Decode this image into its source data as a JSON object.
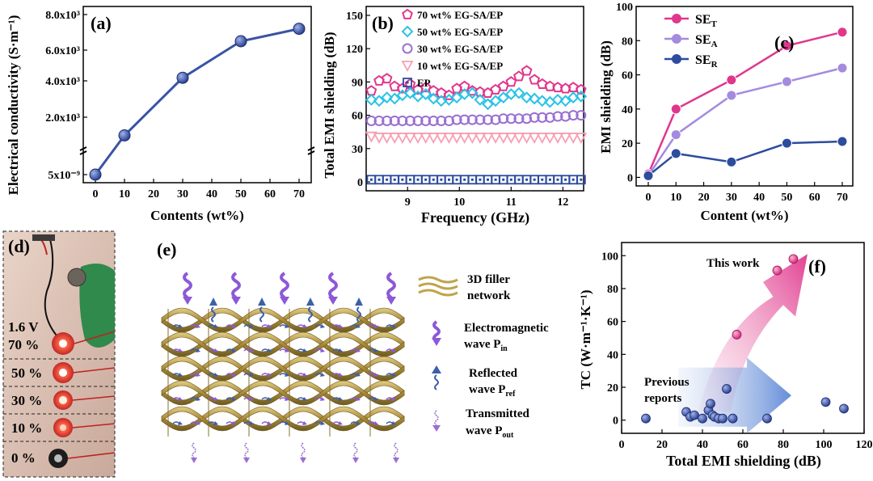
{
  "chart_data": [
    {
      "id": "a",
      "type": "line",
      "panel_label": "(a)",
      "xlabel": "Contents (wt%)",
      "ylabel": "Electrical conductivity (S·m⁻¹)",
      "x": [
        0,
        10,
        30,
        50,
        70
      ],
      "y": [
        5e-09,
        1000,
        4200,
        6500,
        7200
      ],
      "xticks": [
        "0",
        "10",
        "20",
        "30",
        "40",
        "50",
        "60",
        "70"
      ],
      "yticks": [
        "5x10⁻⁹",
        "2.0x10³",
        "4.0x10³",
        "6.0x10³",
        "8.0x10³"
      ],
      "color": "#3a53a4"
    },
    {
      "id": "b",
      "type": "scatter",
      "panel_label": "(b)",
      "xlabel": "Frequency (GHz)",
      "ylabel": "Total EMI shielding (dB)",
      "xlim": [
        8.2,
        12.4
      ],
      "ylim": [
        -8,
        158
      ],
      "xticks": [
        "9",
        "10",
        "11",
        "12"
      ],
      "yticks": [
        "0",
        "30",
        "60",
        "90",
        "120",
        "150"
      ],
      "series": [
        {
          "name": "70 wt% EG-SA/EP",
          "marker": "pentagon",
          "color": "#e0378d",
          "x": [
            8.3,
            8.45,
            8.6,
            8.75,
            8.9,
            9.05,
            9.2,
            9.35,
            9.5,
            9.65,
            9.8,
            9.95,
            10.1,
            10.25,
            10.4,
            10.55,
            10.7,
            10.85,
            11.0,
            11.15,
            11.3,
            11.45,
            11.6,
            11.75,
            11.9,
            12.05,
            12.2,
            12.35
          ],
          "values": [
            82,
            91,
            93,
            86,
            84,
            88,
            83,
            85,
            82,
            80,
            78,
            84,
            86,
            82,
            81,
            80,
            83,
            86,
            90,
            95,
            100,
            92,
            88,
            86,
            85,
            84,
            85,
            83
          ]
        },
        {
          "name": "50 wt% EG-SA/EP",
          "marker": "diamond",
          "color": "#29c3e6",
          "x": [
            8.3,
            8.45,
            8.6,
            8.75,
            8.9,
            9.05,
            9.2,
            9.35,
            9.5,
            9.65,
            9.8,
            9.95,
            10.1,
            10.25,
            10.4,
            10.55,
            10.7,
            10.85,
            11.0,
            11.15,
            11.3,
            11.45,
            11.6,
            11.75,
            11.9,
            12.05,
            12.2,
            12.35
          ],
          "values": [
            74,
            73,
            76,
            75,
            78,
            80,
            77,
            79,
            75,
            73,
            74,
            76,
            79,
            80,
            74,
            70,
            73,
            76,
            79,
            80,
            76,
            75,
            73,
            72,
            74,
            73,
            76,
            77
          ]
        },
        {
          "name": "30 wt% EG-SA/EP",
          "marker": "circle",
          "color": "#9b6fd1",
          "x": [
            8.3,
            8.45,
            8.6,
            8.75,
            8.9,
            9.05,
            9.2,
            9.35,
            9.5,
            9.65,
            9.8,
            9.95,
            10.1,
            10.25,
            10.4,
            10.55,
            10.7,
            10.85,
            11.0,
            11.15,
            11.3,
            11.45,
            11.6,
            11.75,
            11.9,
            12.05,
            12.2,
            12.35
          ],
          "values": [
            55,
            55,
            55,
            55,
            55,
            55,
            55,
            55,
            55,
            55,
            55,
            56,
            56,
            56,
            56,
            56,
            56,
            57,
            57,
            57,
            57,
            58,
            58,
            58,
            59,
            59,
            60,
            60
          ]
        },
        {
          "name": "10 wt% EG-SA/EP",
          "marker": "triangle",
          "color": "#f7a0b4",
          "x": [
            8.3,
            8.45,
            8.6,
            8.75,
            8.9,
            9.05,
            9.2,
            9.35,
            9.5,
            9.65,
            9.8,
            9.95,
            10.1,
            10.25,
            10.4,
            10.55,
            10.7,
            10.85,
            11.0,
            11.15,
            11.3,
            11.45,
            11.6,
            11.75,
            11.9,
            12.05,
            12.2,
            12.35
          ],
          "values": [
            41,
            40,
            40,
            40,
            40,
            40,
            40,
            40,
            40,
            40,
            40,
            40,
            40,
            40,
            40,
            40,
            40,
            40,
            40,
            40,
            40,
            40,
            40,
            40,
            40,
            40,
            40,
            40
          ]
        },
        {
          "name": "EP",
          "marker": "square",
          "color": "#2e4c9e",
          "x": [
            8.3,
            8.45,
            8.6,
            8.75,
            8.9,
            9.05,
            9.2,
            9.35,
            9.5,
            9.65,
            9.8,
            9.95,
            10.1,
            10.25,
            10.4,
            10.55,
            10.7,
            10.85,
            11.0,
            11.15,
            11.3,
            11.45,
            11.6,
            11.75,
            11.9,
            12.05,
            12.2,
            12.35
          ],
          "values": [
            2,
            2,
            2,
            2,
            2,
            2,
            2,
            2,
            2,
            2,
            2,
            2,
            2,
            2,
            2,
            2,
            2,
            2,
            2,
            2,
            2,
            2,
            2,
            2,
            2,
            2,
            2,
            2
          ]
        }
      ]
    },
    {
      "id": "c",
      "type": "line",
      "panel_label": "(c)",
      "xlabel": "Content (wt%)",
      "ylabel": "EMI shielding (dB)",
      "xlim": [
        0,
        70
      ],
      "ylim": [
        -5,
        100
      ],
      "xticks": [
        "0",
        "10",
        "20",
        "30",
        "40",
        "50",
        "60",
        "70"
      ],
      "yticks": [
        "0",
        "20",
        "40",
        "60",
        "80",
        "100"
      ],
      "x": [
        0,
        10,
        30,
        50,
        70
      ],
      "series": [
        {
          "name": "SE",
          "sub": "T",
          "color": "#e0378d",
          "values": [
            2,
            40,
            57,
            77,
            85
          ]
        },
        {
          "name": "SE",
          "sub": "A",
          "color": "#a48be0",
          "values": [
            1,
            25,
            48,
            56,
            64
          ]
        },
        {
          "name": "SE",
          "sub": "R",
          "color": "#2e4c9e",
          "values": [
            1,
            14,
            9,
            20,
            21
          ]
        }
      ]
    },
    {
      "id": "f",
      "type": "scatter",
      "panel_label": "(f)",
      "xlabel": "Total EMI shielding (dB)",
      "ylabel": "TC (W·m⁻¹·K⁻¹)",
      "xlim": [
        0,
        120
      ],
      "ylim": [
        -8,
        108
      ],
      "xticks": [
        "0",
        "20",
        "40",
        "60",
        "80",
        "100",
        "120"
      ],
      "yticks": [
        "0",
        "20",
        "40",
        "60",
        "80",
        "100"
      ],
      "annotations": [
        "This work",
        "Previous",
        "reports"
      ],
      "series": [
        {
          "name": "This work",
          "color": "#e0378d",
          "points": [
            [
              57,
              52
            ],
            [
              77,
              91
            ],
            [
              85,
              98
            ]
          ]
        },
        {
          "name": "Previous reports",
          "color": "#2e4c9e",
          "points": [
            [
              12,
              1
            ],
            [
              32,
              5
            ],
            [
              34,
              2
            ],
            [
              36,
              3
            ],
            [
              40,
              1
            ],
            [
              43,
              6
            ],
            [
              44,
              10
            ],
            [
              45,
              3
            ],
            [
              46,
              2
            ],
            [
              48,
              1
            ],
            [
              50,
              1
            ],
            [
              52,
              19
            ],
            [
              55,
              1
            ],
            [
              72,
              1
            ],
            [
              101,
              11
            ],
            [
              110,
              7
            ]
          ]
        }
      ]
    }
  ],
  "panel_d": {
    "label": "(d)",
    "voltage": "1.6 V",
    "rows": [
      "70 %",
      "50 %",
      "30 %",
      "10 %",
      "0 %"
    ]
  },
  "panel_e": {
    "label": "(e)",
    "legend": [
      {
        "line1": "3D filler",
        "line2": "network"
      },
      {
        "line1": "Electromagnetic",
        "line2": "wave P",
        "sub": "in"
      },
      {
        "line1": "Reflected",
        "line2": "wave P",
        "sub": "ref"
      },
      {
        "line1": "Transmitted",
        "line2": "wave P",
        "sub": "out"
      }
    ]
  },
  "colors": {
    "blue": "#3a53a4",
    "pink": "#e0378d",
    "cyan": "#29c3e6",
    "purple": "#9b6fd1",
    "lightpink": "#f7a0b4",
    "gold": "#bfa54a"
  }
}
